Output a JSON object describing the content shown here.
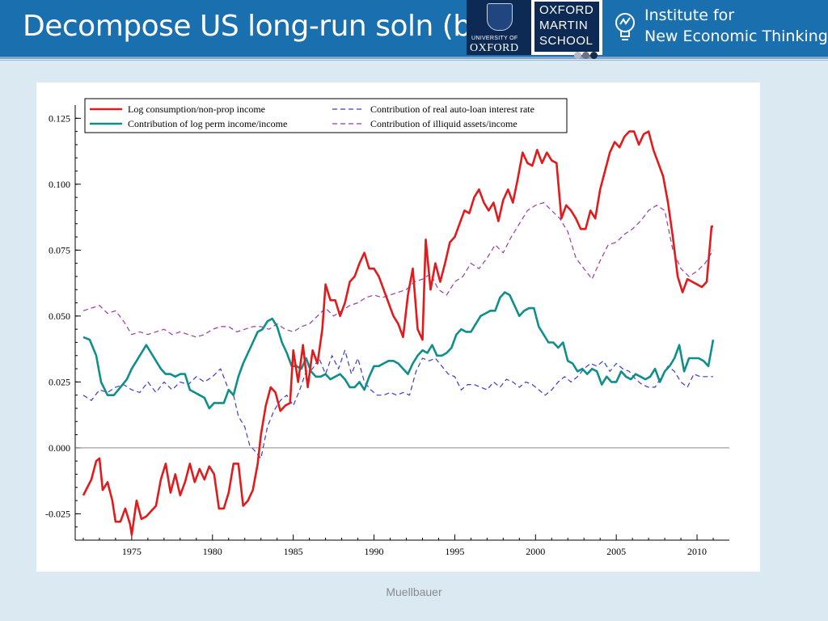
{
  "slide": {
    "title": "Decompose US long-run soln (b)",
    "footer": "Muellbauer"
  },
  "logos": {
    "oxford_univ_small": "UNIVERSITY OF",
    "oxford_univ_big": "OXFORD",
    "martin_lines": [
      "OXFORD",
      "MARTIN",
      "SCHOOL"
    ],
    "inet_lines": [
      "Institute for",
      "New Economic Thinking"
    ],
    "dot_colors": [
      "#b8b8c8",
      "#6f6f8a",
      "#1a2a4a"
    ]
  },
  "colors": {
    "title_bar": "#1a6fae",
    "background": "#dbe9f2",
    "oxford_navy": "#0d2a55"
  },
  "chart_data": {
    "type": "line",
    "title": "",
    "xlabel": "",
    "ylabel": "",
    "xlim": [
      1971.5,
      2012.0
    ],
    "ylim": [
      -0.035,
      0.13
    ],
    "xticks": [
      1975,
      1980,
      1985,
      1990,
      1995,
      2000,
      2005,
      2010
    ],
    "yticks": [
      -0.025,
      0.0,
      0.025,
      0.05,
      0.075,
      0.1,
      0.125
    ],
    "yticklabels": [
      "-0.025",
      "0.000",
      "0.025",
      "0.050",
      "0.075",
      "0.100",
      "0.125"
    ],
    "zero_line": true,
    "grid": false,
    "legend_position": "top-left",
    "legend_columns": 2,
    "series": [
      {
        "name": "Log consumption/non-prop income",
        "color": "#e31a1c",
        "stroke": 2.6,
        "dash": "",
        "x": [
          1972.0,
          1972.5,
          1972.8,
          1973.0,
          1973.2,
          1973.5,
          1973.8,
          1974.0,
          1974.3,
          1974.6,
          1974.9,
          1975.0,
          1975.3,
          1975.6,
          1975.9,
          1976.2,
          1976.5,
          1976.8,
          1977.1,
          1977.4,
          1977.7,
          1978.0,
          1978.3,
          1978.6,
          1978.9,
          1979.2,
          1979.5,
          1979.8,
          1980.1,
          1980.4,
          1980.7,
          1981.0,
          1981.3,
          1981.6,
          1981.9,
          1982.2,
          1982.5,
          1982.8,
          1983.0,
          1983.3,
          1983.6,
          1983.9,
          1984.2,
          1984.5,
          1984.8,
          1985.0,
          1985.3,
          1985.6,
          1985.9,
          1986.2,
          1986.5,
          1986.8,
          1987.0,
          1987.3,
          1987.6,
          1987.9,
          1988.2,
          1988.5,
          1988.8,
          1989.1,
          1989.4,
          1989.7,
          1990.0,
          1990.3,
          1990.6,
          1990.9,
          1991.2,
          1991.5,
          1991.8,
          1992.1,
          1992.4,
          1992.7,
          1993.0,
          1993.2,
          1993.5,
          1993.8,
          1994.1,
          1994.4,
          1994.7,
          1995.0,
          1995.3,
          1995.6,
          1995.9,
          1996.2,
          1996.5,
          1996.8,
          1997.1,
          1997.4,
          1997.7,
          1998.0,
          1998.3,
          1998.6,
          1998.9,
          1999.2,
          1999.5,
          1999.8,
          2000.1,
          2000.4,
          2000.7,
          2001.0,
          2001.3,
          2001.6,
          2001.9,
          2002.2,
          2002.5,
          2002.8,
          2003.1,
          2003.4,
          2003.7,
          2004.0,
          2004.3,
          2004.6,
          2004.9,
          2005.2,
          2005.5,
          2005.8,
          2006.1,
          2006.4,
          2006.7,
          2007.0,
          2007.3,
          2007.6,
          2007.9,
          2008.2,
          2008.5,
          2008.8,
          2009.1,
          2009.4,
          2009.7,
          2010.0,
          2010.3,
          2010.6,
          2010.9,
          2011.0
        ],
        "y": [
          -0.018,
          -0.012,
          -0.005,
          -0.004,
          -0.016,
          -0.013,
          -0.02,
          -0.028,
          -0.028,
          -0.023,
          -0.029,
          -0.033,
          -0.02,
          -0.027,
          -0.026,
          -0.024,
          -0.022,
          -0.012,
          -0.006,
          -0.017,
          -0.01,
          -0.018,
          -0.013,
          -0.006,
          -0.013,
          -0.008,
          -0.012,
          -0.007,
          -0.01,
          -0.023,
          -0.023,
          -0.017,
          -0.006,
          -0.006,
          -0.022,
          -0.02,
          -0.016,
          -0.006,
          0.005,
          0.016,
          0.023,
          0.021,
          0.014,
          0.016,
          0.017,
          0.037,
          0.025,
          0.039,
          0.023,
          0.037,
          0.032,
          0.045,
          0.062,
          0.056,
          0.056,
          0.05,
          0.055,
          0.063,
          0.065,
          0.07,
          0.074,
          0.068,
          0.068,
          0.065,
          0.06,
          0.055,
          0.05,
          0.047,
          0.042,
          0.058,
          0.068,
          0.045,
          0.041,
          0.079,
          0.06,
          0.07,
          0.063,
          0.07,
          0.078,
          0.08,
          0.085,
          0.09,
          0.089,
          0.095,
          0.098,
          0.093,
          0.09,
          0.093,
          0.086,
          0.094,
          0.098,
          0.093,
          0.102,
          0.112,
          0.108,
          0.107,
          0.113,
          0.108,
          0.112,
          0.109,
          0.108,
          0.087,
          0.092,
          0.09,
          0.087,
          0.083,
          0.083,
          0.09,
          0.087,
          0.098,
          0.105,
          0.112,
          0.116,
          0.114,
          0.118,
          0.12,
          0.12,
          0.115,
          0.119,
          0.12,
          0.113,
          0.108,
          0.103,
          0.093,
          0.08,
          0.065,
          0.059,
          0.064,
          0.063,
          0.062,
          0.061,
          0.063,
          0.084,
          0.084
        ]
      },
      {
        "name": "Contribution of log perm income/income",
        "color": "#0f8f8a",
        "stroke": 2.6,
        "dash": "",
        "x": [
          1972.0,
          1972.4,
          1972.8,
          1973.1,
          1973.5,
          1973.9,
          1974.3,
          1974.7,
          1975.0,
          1975.3,
          1975.6,
          1975.9,
          1976.2,
          1976.5,
          1976.8,
          1977.1,
          1977.4,
          1977.7,
          1978.0,
          1978.3,
          1978.6,
          1978.9,
          1979.2,
          1979.5,
          1979.8,
          1980.1,
          1980.4,
          1980.7,
          1981.0,
          1981.3,
          1981.6,
          1981.9,
          1982.2,
          1982.5,
          1982.8,
          1983.1,
          1983.4,
          1983.7,
          1984.0,
          1984.3,
          1984.6,
          1984.9,
          1985.2,
          1985.5,
          1985.8,
          1986.1,
          1986.4,
          1986.7,
          1987.0,
          1987.3,
          1987.6,
          1987.9,
          1988.2,
          1988.5,
          1988.8,
          1989.1,
          1989.4,
          1989.7,
          1990.0,
          1990.3,
          1990.6,
          1990.9,
          1991.2,
          1991.5,
          1991.8,
          1992.1,
          1992.4,
          1992.7,
          1993.0,
          1993.3,
          1993.6,
          1993.9,
          1994.2,
          1994.5,
          1994.8,
          1995.1,
          1995.4,
          1995.7,
          1996.0,
          1996.3,
          1996.6,
          1996.9,
          1997.2,
          1997.5,
          1997.8,
          1998.1,
          1998.4,
          1998.7,
          1999.0,
          1999.3,
          1999.6,
          1999.9,
          2000.2,
          2000.5,
          2000.8,
          2001.1,
          2001.4,
          2001.7,
          2002.0,
          2002.3,
          2002.6,
          2002.9,
          2003.2,
          2003.5,
          2003.8,
          2004.1,
          2004.4,
          2004.7,
          2005.0,
          2005.3,
          2005.6,
          2005.9,
          2006.2,
          2006.5,
          2006.8,
          2007.1,
          2007.4,
          2007.7,
          2008.0,
          2008.3,
          2008.6,
          2008.9,
          2009.2,
          2009.5,
          2009.8,
          2010.1,
          2010.4,
          2010.7,
          2011.0
        ],
        "y": [
          0.042,
          0.041,
          0.035,
          0.025,
          0.02,
          0.02,
          0.023,
          0.026,
          0.03,
          0.033,
          0.036,
          0.039,
          0.036,
          0.033,
          0.03,
          0.028,
          0.028,
          0.027,
          0.028,
          0.028,
          0.022,
          0.021,
          0.02,
          0.019,
          0.015,
          0.017,
          0.017,
          0.017,
          0.022,
          0.02,
          0.027,
          0.032,
          0.036,
          0.04,
          0.044,
          0.045,
          0.048,
          0.049,
          0.046,
          0.04,
          0.036,
          0.031,
          0.031,
          0.03,
          0.034,
          0.029,
          0.027,
          0.027,
          0.028,
          0.026,
          0.027,
          0.028,
          0.026,
          0.023,
          0.023,
          0.025,
          0.022,
          0.027,
          0.031,
          0.031,
          0.032,
          0.033,
          0.033,
          0.032,
          0.03,
          0.028,
          0.032,
          0.035,
          0.037,
          0.036,
          0.039,
          0.035,
          0.035,
          0.036,
          0.038,
          0.043,
          0.045,
          0.044,
          0.044,
          0.047,
          0.05,
          0.051,
          0.052,
          0.052,
          0.057,
          0.059,
          0.058,
          0.054,
          0.05,
          0.052,
          0.053,
          0.053,
          0.046,
          0.043,
          0.04,
          0.04,
          0.038,
          0.04,
          0.033,
          0.032,
          0.029,
          0.03,
          0.028,
          0.03,
          0.029,
          0.024,
          0.027,
          0.025,
          0.025,
          0.029,
          0.027,
          0.026,
          0.028,
          0.027,
          0.026,
          0.027,
          0.03,
          0.025,
          0.029,
          0.031,
          0.034,
          0.039,
          0.029,
          0.034,
          0.034,
          0.034,
          0.033,
          0.031,
          0.041
        ]
      },
      {
        "name": "Contribution of real auto-loan interest rate",
        "color": "#3a3ad8",
        "stroke": 1.2,
        "dash": "6,4",
        "x": [
          1972.0,
          1972.5,
          1973.0,
          1973.5,
          1974.0,
          1974.5,
          1975.0,
          1975.5,
          1976.0,
          1976.5,
          1977.0,
          1977.5,
          1978.0,
          1978.5,
          1979.0,
          1979.5,
          1980.0,
          1980.5,
          1981.0,
          1981.3,
          1981.6,
          1982.0,
          1982.3,
          1982.6,
          1983.0,
          1983.4,
          1983.8,
          1984.2,
          1984.6,
          1985.0,
          1985.4,
          1985.8,
          1986.2,
          1986.6,
          1987.0,
          1987.4,
          1987.8,
          1988.2,
          1988.6,
          1989.0,
          1989.4,
          1989.8,
          1990.2,
          1990.6,
          1991.0,
          1991.4,
          1991.8,
          1992.2,
          1992.6,
          1993.0,
          1993.4,
          1993.8,
          1994.2,
          1994.6,
          1995.0,
          1995.4,
          1995.8,
          1996.2,
          1996.6,
          1997.0,
          1997.4,
          1997.8,
          1998.2,
          1998.6,
          1999.0,
          1999.4,
          1999.8,
          2000.2,
          2000.6,
          2001.0,
          2001.4,
          2001.8,
          2002.2,
          2002.6,
          2003.0,
          2003.4,
          2003.8,
          2004.2,
          2004.6,
          2005.0,
          2005.4,
          2005.8,
          2006.2,
          2006.6,
          2007.0,
          2007.4,
          2007.8,
          2008.2,
          2008.6,
          2009.0,
          2009.4,
          2009.8,
          2010.2,
          2010.6,
          2011.0
        ],
        "y": [
          0.02,
          0.018,
          0.022,
          0.021,
          0.023,
          0.024,
          0.022,
          0.021,
          0.025,
          0.021,
          0.025,
          0.022,
          0.025,
          0.024,
          0.027,
          0.025,
          0.027,
          0.03,
          0.022,
          0.02,
          0.012,
          0.008,
          0.001,
          -0.001,
          -0.004,
          0.008,
          0.014,
          0.018,
          0.02,
          0.016,
          0.022,
          0.029,
          0.03,
          0.034,
          0.028,
          0.035,
          0.03,
          0.037,
          0.028,
          0.034,
          0.025,
          0.022,
          0.02,
          0.02,
          0.021,
          0.02,
          0.021,
          0.02,
          0.029,
          0.034,
          0.033,
          0.034,
          0.031,
          0.028,
          0.027,
          0.022,
          0.024,
          0.024,
          0.023,
          0.022,
          0.025,
          0.023,
          0.026,
          0.025,
          0.023,
          0.025,
          0.024,
          0.022,
          0.02,
          0.022,
          0.025,
          0.027,
          0.025,
          0.027,
          0.03,
          0.032,
          0.031,
          0.033,
          0.029,
          0.032,
          0.03,
          0.029,
          0.026,
          0.024,
          0.023,
          0.023,
          0.027,
          0.031,
          0.029,
          0.025,
          0.023,
          0.028,
          0.027,
          0.027,
          0.027
        ]
      },
      {
        "name": "Contribution of illiquid assets/income",
        "color": "#9b3aa5",
        "stroke": 1.2,
        "dash": "6,4",
        "x": [
          1972.0,
          1972.5,
          1973.0,
          1973.5,
          1974.0,
          1974.5,
          1975.0,
          1975.5,
          1976.0,
          1976.5,
          1977.0,
          1977.5,
          1978.0,
          1978.5,
          1979.0,
          1979.5,
          1980.0,
          1980.5,
          1981.0,
          1981.5,
          1982.0,
          1982.5,
          1983.0,
          1983.5,
          1984.0,
          1984.5,
          1985.0,
          1985.5,
          1986.0,
          1986.5,
          1987.0,
          1987.5,
          1988.0,
          1988.5,
          1989.0,
          1989.5,
          1990.0,
          1990.5,
          1991.0,
          1991.5,
          1992.0,
          1992.5,
          1993.0,
          1993.5,
          1994.0,
          1994.5,
          1995.0,
          1995.5,
          1996.0,
          1996.5,
          1997.0,
          1997.5,
          1998.0,
          1998.5,
          1999.0,
          1999.5,
          2000.0,
          2000.5,
          2001.0,
          2001.5,
          2002.0,
          2002.5,
          2003.0,
          2003.5,
          2004.0,
          2004.5,
          2005.0,
          2005.5,
          2006.0,
          2006.5,
          2007.0,
          2007.5,
          2008.0,
          2008.5,
          2009.0,
          2009.5,
          2010.0,
          2010.5,
          2011.0
        ],
        "y": [
          0.052,
          0.053,
          0.054,
          0.051,
          0.052,
          0.048,
          0.043,
          0.044,
          0.043,
          0.044,
          0.045,
          0.043,
          0.044,
          0.043,
          0.042,
          0.043,
          0.045,
          0.046,
          0.046,
          0.044,
          0.045,
          0.046,
          0.046,
          0.045,
          0.047,
          0.045,
          0.044,
          0.046,
          0.047,
          0.05,
          0.053,
          0.05,
          0.052,
          0.054,
          0.055,
          0.057,
          0.058,
          0.057,
          0.058,
          0.059,
          0.06,
          0.063,
          0.064,
          0.066,
          0.06,
          0.058,
          0.063,
          0.065,
          0.07,
          0.068,
          0.072,
          0.077,
          0.074,
          0.08,
          0.085,
          0.09,
          0.092,
          0.093,
          0.09,
          0.087,
          0.082,
          0.072,
          0.068,
          0.064,
          0.071,
          0.077,
          0.078,
          0.081,
          0.083,
          0.086,
          0.09,
          0.092,
          0.09,
          0.075,
          0.068,
          0.065,
          0.067,
          0.07,
          0.075
        ]
      }
    ]
  }
}
